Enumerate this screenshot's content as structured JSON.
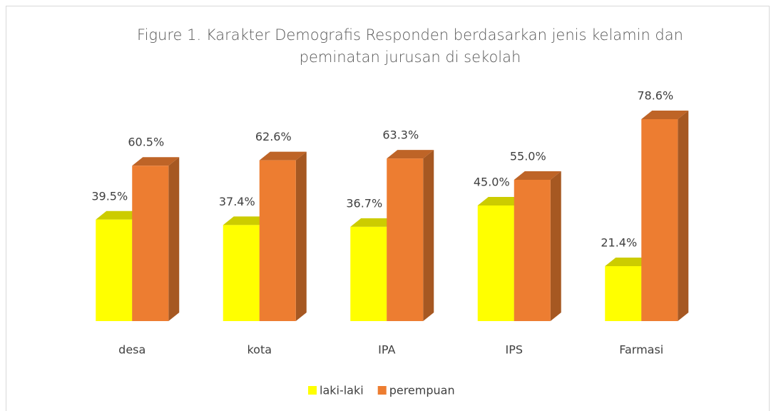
{
  "chart_data": {
    "type": "bar3d",
    "title": "Figure 1. Karakter Demografis Responden berdasarkan jenis kelamin dan peminatan jurusan di sekolah",
    "categories": [
      "desa",
      "kota",
      "IPA",
      "IPS",
      "Farmasi"
    ],
    "series": [
      {
        "name": "laki-laki",
        "color": "#FFFF00",
        "values": [
          39.5,
          37.4,
          36.7,
          45.0,
          21.4
        ],
        "value_labels": [
          "39.5%",
          "37.4%",
          "36.7%",
          "45.0%",
          "21.4%"
        ]
      },
      {
        "name": "perempuan",
        "color": "#ED7D31",
        "values": [
          60.5,
          62.6,
          63.3,
          55.0,
          78.6
        ],
        "value_labels": [
          "60.5%",
          "62.6%",
          "63.3%",
          "55.0%",
          "78.6%"
        ]
      }
    ],
    "legend": "bottom"
  }
}
